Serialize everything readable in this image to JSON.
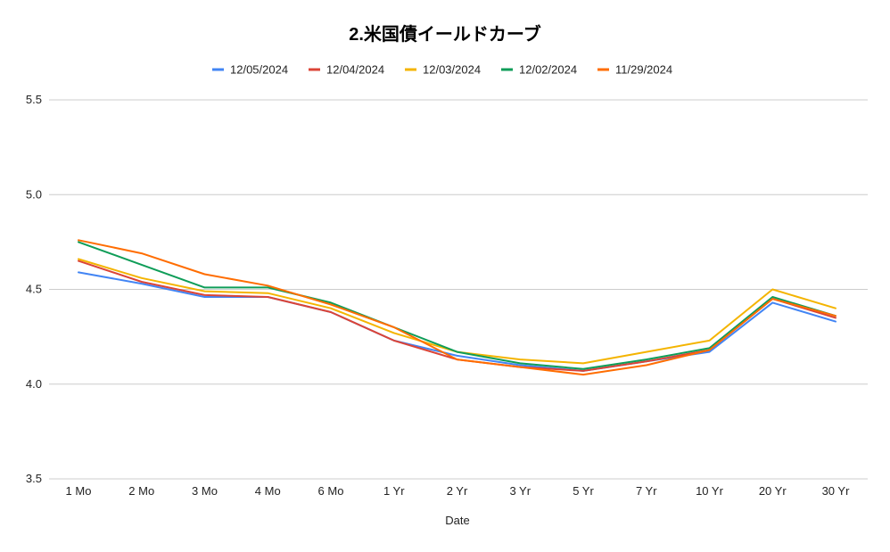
{
  "chart_data": {
    "type": "line",
    "title": "2.米国債イールドカーブ",
    "xlabel": "Date",
    "ylabel": "",
    "categories": [
      "1 Mo",
      "2 Mo",
      "3 Mo",
      "4 Mo",
      "6 Mo",
      "1 Yr",
      "2 Yr",
      "3 Yr",
      "5 Yr",
      "7 Yr",
      "10 Yr",
      "20 Yr",
      "30 Yr"
    ],
    "ylim": [
      3.5,
      5.5
    ],
    "yticks": [
      "3.5",
      "4.0",
      "4.5",
      "5.0",
      "5.5"
    ],
    "grid": true,
    "legend_position": "top",
    "series": [
      {
        "name": "12/05/2024",
        "color": "#4285f4",
        "values": [
          4.59,
          4.53,
          4.46,
          4.46,
          4.38,
          4.23,
          4.15,
          4.1,
          4.07,
          4.12,
          4.17,
          4.43,
          4.33
        ]
      },
      {
        "name": "12/04/2024",
        "color": "#db4437",
        "values": [
          4.65,
          4.54,
          4.47,
          4.46,
          4.38,
          4.23,
          4.13,
          4.09,
          4.07,
          4.12,
          4.18,
          4.45,
          4.35
        ]
      },
      {
        "name": "12/03/2024",
        "color": "#f4b400",
        "values": [
          4.66,
          4.56,
          4.49,
          4.48,
          4.4,
          4.27,
          4.17,
          4.13,
          4.11,
          4.17,
          4.23,
          4.5,
          4.4
        ]
      },
      {
        "name": "12/02/2024",
        "color": "#0f9d58",
        "values": [
          4.75,
          4.63,
          4.51,
          4.51,
          4.43,
          4.3,
          4.17,
          4.11,
          4.08,
          4.13,
          4.19,
          4.46,
          4.36
        ]
      },
      {
        "name": "11/29/2024",
        "color": "#ff6d01",
        "values": [
          4.76,
          4.69,
          4.58,
          4.52,
          4.42,
          4.3,
          4.13,
          4.09,
          4.05,
          4.1,
          4.18,
          4.45,
          4.36
        ]
      }
    ]
  }
}
